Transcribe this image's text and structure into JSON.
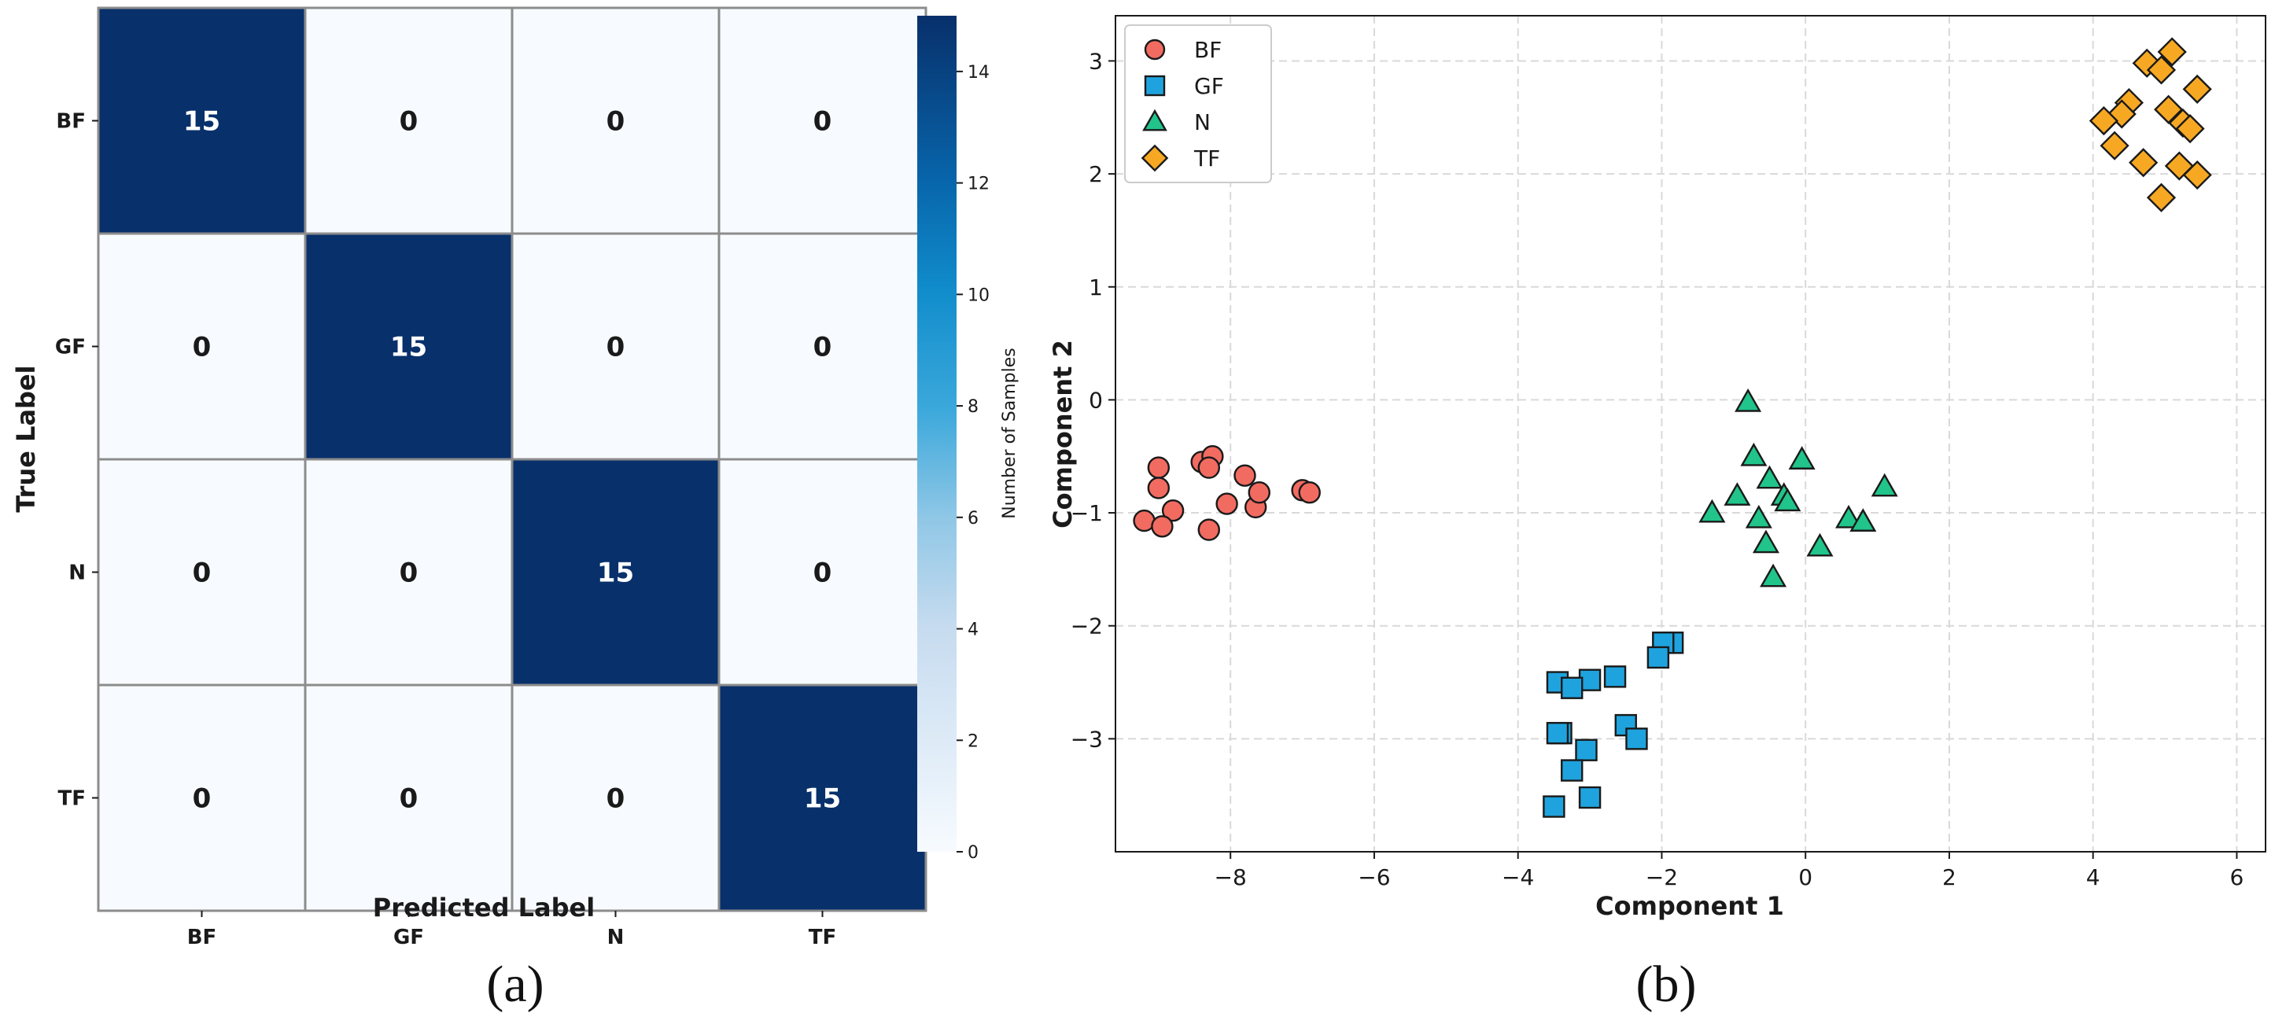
{
  "colors": {
    "cm_high": "#08306b",
    "cm_low": "#f7fbff",
    "cm_grid": "#8c8c8c",
    "bf": "#f26b61",
    "gf": "#1fa3de",
    "n": "#21c48a",
    "tf": "#f7a823",
    "marker_edge": "#1a1a1a",
    "grid": "#d9d9d9"
  },
  "chart_data": [
    {
      "id": "a",
      "type": "heatmap",
      "panel_label": "(a)",
      "row_labels": [
        "BF",
        "GF",
        "N",
        "TF"
      ],
      "col_labels": [
        "BF",
        "GF",
        "N",
        "TF"
      ],
      "matrix": [
        [
          15,
          0,
          0,
          0
        ],
        [
          0,
          15,
          0,
          0
        ],
        [
          0,
          0,
          15,
          0
        ],
        [
          0,
          0,
          0,
          15
        ]
      ],
      "xlabel": "Predicted Label",
      "ylabel": "True Label",
      "colorbar": {
        "label": "Number of Samples",
        "min": 0,
        "max": 15,
        "ticks": [
          "0",
          "2",
          "4",
          "6",
          "8",
          "10",
          "12",
          "14"
        ],
        "tick_values": [
          0,
          2,
          4,
          6,
          8,
          10,
          12,
          14
        ]
      }
    },
    {
      "id": "b",
      "type": "scatter",
      "panel_label": "(b)",
      "xlabel": "Component 1",
      "ylabel": "Component 2",
      "xlim": [
        -9.6,
        6.4
      ],
      "ylim": [
        -4.0,
        3.4
      ],
      "xticks": [
        -8,
        -6,
        -4,
        -2,
        0,
        2,
        4,
        6
      ],
      "xtick_labels": [
        "−8",
        "−6",
        "−4",
        "−2",
        "0",
        "2",
        "4",
        "6"
      ],
      "yticks": [
        -3,
        -2,
        -1,
        0,
        1,
        2,
        3
      ],
      "ytick_labels": [
        "−3",
        "−2",
        "−1",
        "0",
        "1",
        "2",
        "3"
      ],
      "legend_position": "top-left",
      "series": [
        {
          "name": "BF",
          "marker": "circle",
          "color": "#f26b61",
          "points": [
            [
              -9.0,
              -0.6
            ],
            [
              -8.4,
              -0.55
            ],
            [
              -8.25,
              -0.5
            ],
            [
              -8.3,
              -0.6
            ],
            [
              -7.8,
              -0.67
            ],
            [
              -9.0,
              -0.78
            ],
            [
              -8.8,
              -0.98
            ],
            [
              -8.05,
              -0.92
            ],
            [
              -7.65,
              -0.95
            ],
            [
              -7.6,
              -0.82
            ],
            [
              -7.0,
              -0.8
            ],
            [
              -6.9,
              -0.82
            ],
            [
              -9.2,
              -1.07
            ],
            [
              -8.95,
              -1.12
            ],
            [
              -8.3,
              -1.15
            ]
          ]
        },
        {
          "name": "GF",
          "marker": "square",
          "color": "#1fa3de",
          "points": [
            [
              -1.85,
              -2.15
            ],
            [
              -1.98,
              -2.15
            ],
            [
              -2.05,
              -2.28
            ],
            [
              -2.65,
              -2.45
            ],
            [
              -3.0,
              -2.48
            ],
            [
              -3.45,
              -2.5
            ],
            [
              -3.25,
              -2.55
            ],
            [
              -2.5,
              -2.88
            ],
            [
              -2.35,
              -3.0
            ],
            [
              -3.4,
              -2.95
            ],
            [
              -3.45,
              -2.95
            ],
            [
              -3.05,
              -3.1
            ],
            [
              -3.25,
              -3.28
            ],
            [
              -3.0,
              -3.52
            ],
            [
              -3.5,
              -3.6
            ]
          ]
        },
        {
          "name": "N",
          "marker": "triangle",
          "color": "#21c48a",
          "points": [
            [
              -0.8,
              -0.02
            ],
            [
              -0.72,
              -0.5
            ],
            [
              -0.05,
              -0.53
            ],
            [
              -0.5,
              -0.7
            ],
            [
              1.1,
              -0.77
            ],
            [
              -0.95,
              -0.85
            ],
            [
              -0.3,
              -0.85
            ],
            [
              -0.25,
              -0.9
            ],
            [
              -1.3,
              -1.0
            ],
            [
              -0.65,
              -1.05
            ],
            [
              0.6,
              -1.05
            ],
            [
              0.8,
              -1.08
            ],
            [
              -0.55,
              -1.27
            ],
            [
              0.2,
              -1.3
            ],
            [
              -0.45,
              -1.57
            ]
          ]
        },
        {
          "name": "TF",
          "marker": "diamond",
          "color": "#f7a823",
          "points": [
            [
              5.1,
              3.08
            ],
            [
              4.75,
              2.98
            ],
            [
              4.95,
              2.92
            ],
            [
              5.45,
              2.75
            ],
            [
              4.5,
              2.63
            ],
            [
              5.05,
              2.57
            ],
            [
              4.4,
              2.53
            ],
            [
              5.25,
              2.45
            ],
            [
              5.35,
              2.4
            ],
            [
              4.15,
              2.47
            ],
            [
              4.3,
              2.25
            ],
            [
              4.7,
              2.1
            ],
            [
              5.2,
              2.07
            ],
            [
              5.45,
              1.99
            ],
            [
              4.95,
              1.79
            ]
          ]
        }
      ]
    }
  ]
}
